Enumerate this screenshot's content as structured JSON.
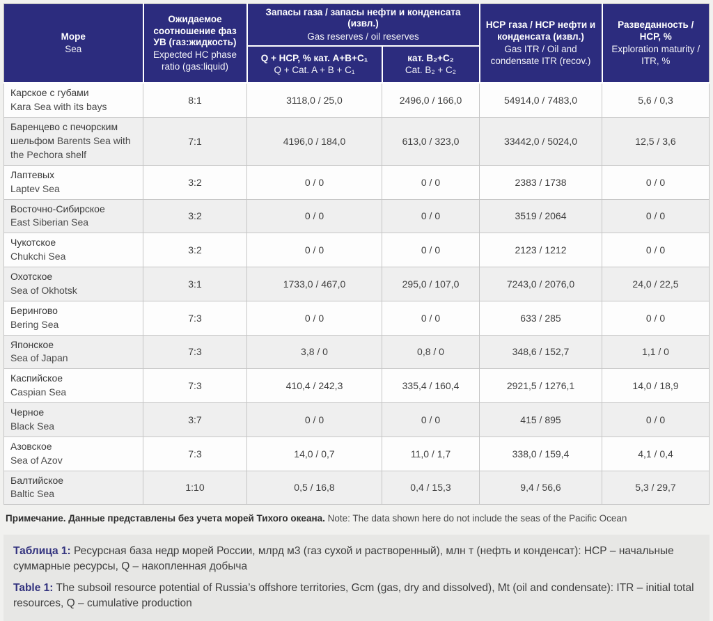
{
  "colors": {
    "header_bg": "#2c2c7e",
    "header_text": "#ffffff",
    "alt_row_bg": "#efefef",
    "body_border": "#c5c5c5",
    "page_bg": "#f1f1ef",
    "caption_bg": "#e7e7e5",
    "caption_label": "#32327e"
  },
  "table": {
    "header": {
      "sea": {
        "ru": "Море",
        "en": "Sea"
      },
      "ratio": {
        "ru": "Ожидаемое соотношение фаз УВ (газ:жидкость)",
        "en": "Expected HC phase ratio (gas:liquid)"
      },
      "reserves_group": {
        "ru": "Запасы газа / запасы нефти и конденсата (извл.)",
        "en": "Gas reserves / oil reserves"
      },
      "reserves_abc": {
        "ru": "Q + НСР, % кат. А+В+С₁",
        "en": "Q + Cat. A + B + C₁"
      },
      "reserves_bc": {
        "ru": "кат. В₂+С₂",
        "en": "Cat. B₂ + C₂"
      },
      "itr": {
        "ru": "НСР газа / НСР нефти и конденсата (извл.)",
        "en": "Gas ITR / Oil and condensate ITR (recov.)"
      },
      "maturity": {
        "ru": "Разведанность / НСР, %",
        "en": "Exploration maturity / ITR, %"
      }
    },
    "rows": [
      {
        "sea_ru": "Карское с губами",
        "sea_en": "Kara Sea with its bays",
        "ratio": "8:1",
        "abc": "3118,0 / 25,0",
        "bc": "2496,0 / 166,0",
        "itr": "54914,0 / 7483,0",
        "maturity": "5,6 / 0,3"
      },
      {
        "sea_ru": "Баренцево с печорским шельфом",
        "sea_en": "Barents Sea with the Pechora shelf",
        "ratio": "7:1",
        "abc": "4196,0 / 184,0",
        "bc": "613,0 / 323,0",
        "itr": "33442,0 / 5024,0",
        "maturity": "12,5 / 3,6"
      },
      {
        "sea_ru": "Лаптевых",
        "sea_en": "Laptev Sea",
        "ratio": "3:2",
        "abc": "0 / 0",
        "bc": "0 / 0",
        "itr": "2383 / 1738",
        "maturity": "0 / 0"
      },
      {
        "sea_ru": "Восточно-Сибирское",
        "sea_en": "East Siberian Sea",
        "ratio": "3:2",
        "abc": "0 / 0",
        "bc": "0 / 0",
        "itr": "3519 / 2064",
        "maturity": "0 / 0"
      },
      {
        "sea_ru": "Чукотское",
        "sea_en": "Chukchi Sea",
        "ratio": "3:2",
        "abc": "0 / 0",
        "bc": "0 / 0",
        "itr": "2123 / 1212",
        "maturity": "0 / 0"
      },
      {
        "sea_ru": "Охотское",
        "sea_en": "Sea of Okhotsk",
        "ratio": "3:1",
        "abc": "1733,0 / 467,0",
        "bc": "295,0 / 107,0",
        "itr": "7243,0 / 2076,0",
        "maturity": "24,0 / 22,5"
      },
      {
        "sea_ru": "Берингово",
        "sea_en": "Bering Sea",
        "ratio": "7:3",
        "abc": "0 / 0",
        "bc": "0 / 0",
        "itr": "633 / 285",
        "maturity": "0 / 0"
      },
      {
        "sea_ru": "Японское",
        "sea_en": "Sea of Japan",
        "ratio": "7:3",
        "abc": "3,8 / 0",
        "bc": "0,8 / 0",
        "itr": "348,6 / 152,7",
        "maturity": "1,1 / 0"
      },
      {
        "sea_ru": "Каспийское",
        "sea_en": "Caspian Sea",
        "ratio": "7:3",
        "abc": "410,4 / 242,3",
        "bc": "335,4 / 160,4",
        "itr": "2921,5 / 1276,1",
        "maturity": "14,0 / 18,9"
      },
      {
        "sea_ru": "Черное",
        "sea_en": "Black Sea",
        "ratio": "3:7",
        "abc": "0 / 0",
        "bc": "0 / 0",
        "itr": "415 / 895",
        "maturity": "0 / 0"
      },
      {
        "sea_ru": "Азовское",
        "sea_en": "Sea of Azov",
        "ratio": "7:3",
        "abc": "14,0 / 0,7",
        "bc": "11,0 / 1,7",
        "itr": "338,0 / 159,4",
        "maturity": "4,1 / 0,4"
      },
      {
        "sea_ru": "Балтийское",
        "sea_en": "Baltic Sea",
        "ratio": "1:10",
        "abc": "0,5 / 16,8",
        "bc": "0,4 / 15,3",
        "itr": "9,4 / 56,6",
        "maturity": "5,3 / 29,7"
      }
    ]
  },
  "note": {
    "ru": "Примечание. Данные представлены без учета морей Тихого океана.",
    "en": "Note: The data shown here do not include the seas of the Pacific Ocean"
  },
  "caption": {
    "ru_label": "Таблица 1:",
    "ru_text": "Ресурсная база недр морей России, млрд м3 (газ сухой и растворенный), млн т (нефть и конденсат): НСР – начальные суммарные ресурсы, Q – накопленная добыча",
    "en_label": "Table 1:",
    "en_text": "The subsoil resource potential of Russia’s offshore territories, Gcm (gas, dry and dissolved), Mt (oil and condensate): ITR – initial total resources, Q – cumulative production"
  }
}
